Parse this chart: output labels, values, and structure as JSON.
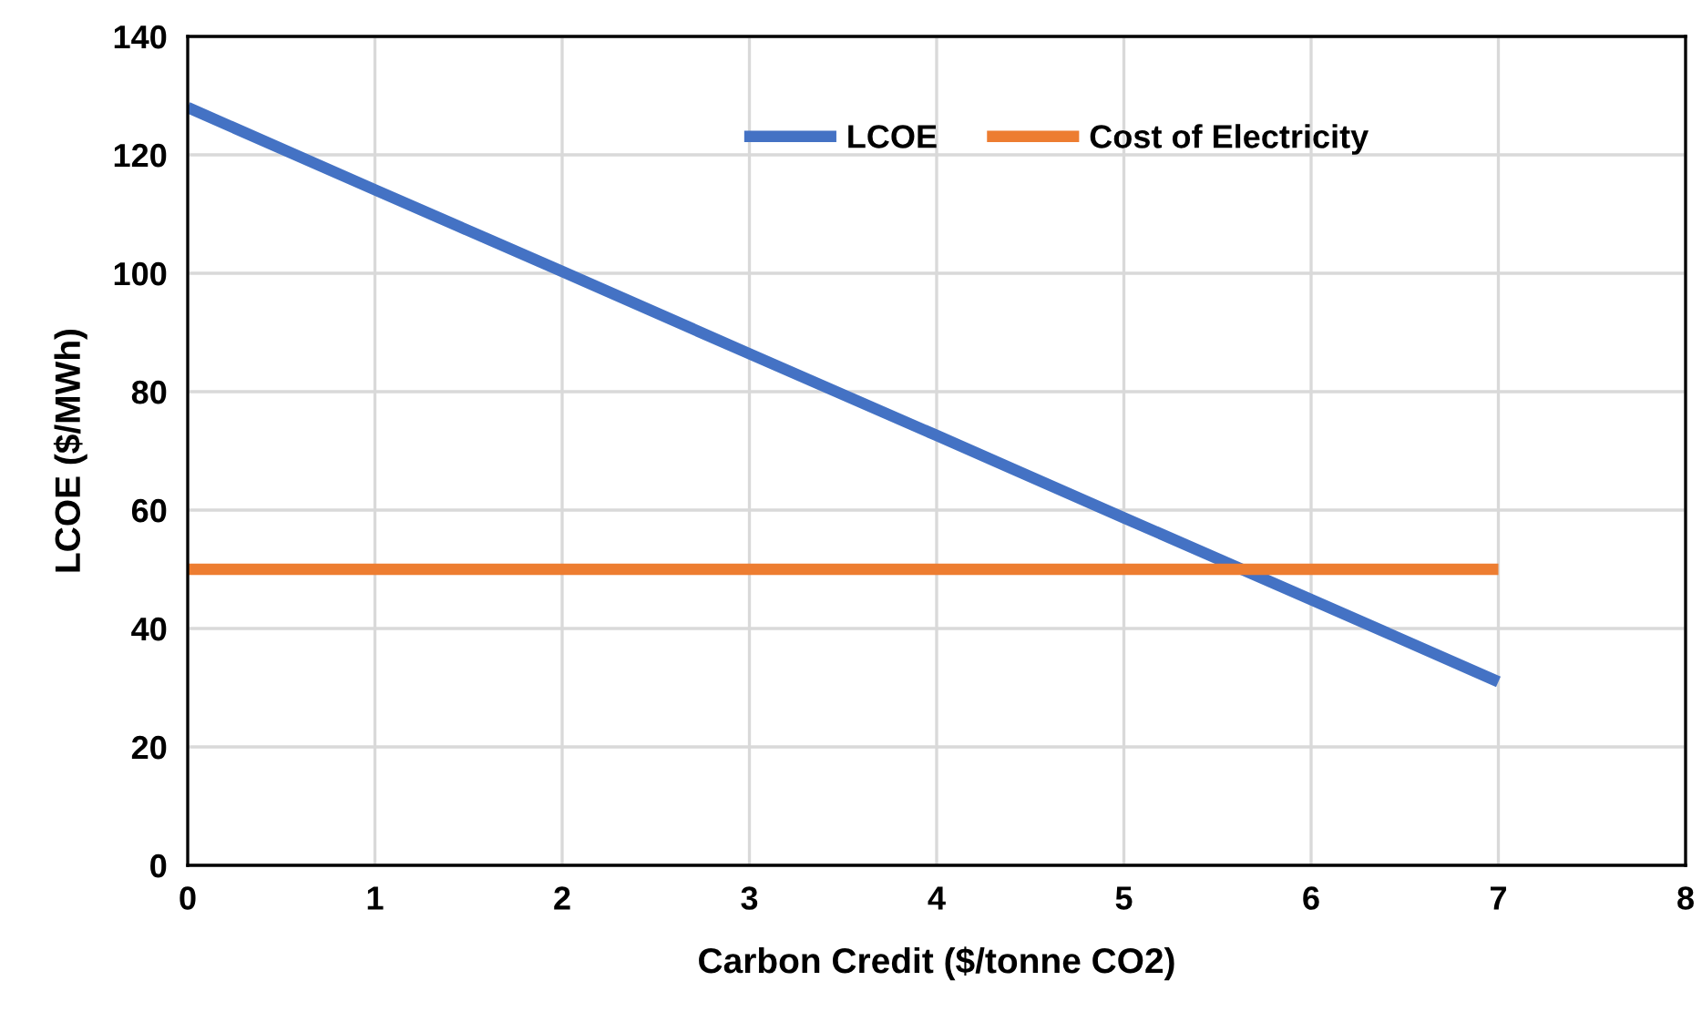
{
  "chart_data": {
    "type": "line",
    "xlabel": "Carbon Credit ($/tonne CO2)",
    "ylabel": "LCOE ($/MWh)",
    "x": [
      0,
      1,
      2,
      3,
      4,
      5,
      6,
      7
    ],
    "series": [
      {
        "name": "LCOE",
        "color": "#4472c4",
        "values": [
          128,
          114.1,
          100.3,
          86.4,
          72.6,
          58.7,
          44.9,
          31
        ]
      },
      {
        "name": "Cost of Electricity",
        "color": "#ed7d31",
        "values": [
          50,
          50,
          50,
          50,
          50,
          50,
          50,
          50
        ]
      }
    ],
    "xlim": [
      0,
      8
    ],
    "xticks": [
      0,
      1,
      2,
      3,
      4,
      5,
      6,
      7,
      8
    ],
    "ylim": [
      0,
      140
    ],
    "yticks": [
      0,
      20,
      40,
      60,
      80,
      100,
      120,
      140
    ],
    "grid": true,
    "legend": "top",
    "marker": "none",
    "line_style": "solid"
  }
}
